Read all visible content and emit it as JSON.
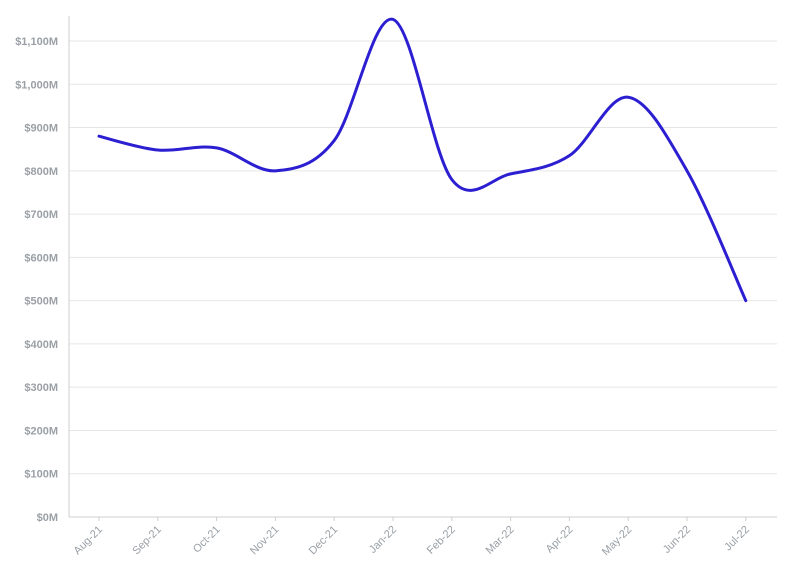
{
  "chart_data": {
    "type": "line",
    "title": "",
    "xlabel": "",
    "ylabel": "",
    "categories": [
      "Aug-21",
      "Sep-21",
      "Oct-21",
      "Nov-21",
      "Dec-21",
      "Jan-22",
      "Feb-22",
      "Mar-22",
      "Apr-22",
      "May-22",
      "Jun-22",
      "Jul-22"
    ],
    "series": [
      {
        "values": [
          880,
          848,
          853,
          800,
          870,
          1150,
          780,
          793,
          835,
          970,
          800,
          500
        ],
        "color": "#2c1fd1"
      }
    ],
    "y_ticks": [
      "$0M",
      "$100M",
      "$200M",
      "$300M",
      "$400M",
      "$500M",
      "$600M",
      "$700M",
      "$800M",
      "$900M",
      "$1,000M",
      "$1,100M"
    ],
    "ylim": [
      0,
      1100
    ],
    "y_unit": "millions USD",
    "grid": true,
    "legend": "none",
    "colors": {
      "line": "#2c1fd1",
      "grid": "#e6e6e6",
      "axis": "#cfcfcf",
      "tick_text": "#9aa0a6"
    }
  }
}
